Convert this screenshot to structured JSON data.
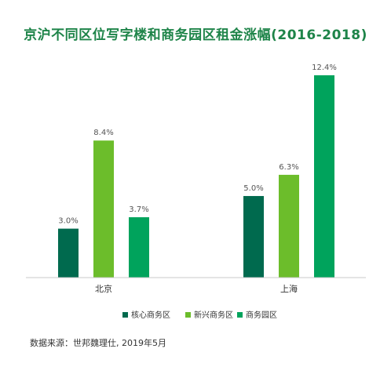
{
  "chart_data": {
    "type": "bar",
    "title": "京沪不同区位写字楼和商务园区租金涨幅(2016-2018)",
    "categories": [
      "北京",
      "上海"
    ],
    "series": [
      {
        "name": "核心商务区",
        "values": [
          3.0,
          5.0
        ],
        "labels": [
          "3.0%",
          "5.0%"
        ],
        "color": "#006a4e"
      },
      {
        "name": "新兴商务区",
        "values": [
          8.4,
          6.3
        ],
        "labels": [
          "8.4%",
          "6.3%"
        ],
        "color": "#6cbd2b"
      },
      {
        "name": "商务园区",
        "values": [
          3.7,
          12.4
        ],
        "labels": [
          "3.7%",
          "12.4%"
        ],
        "color": "#00a35c"
      }
    ],
    "ylim": [
      0,
      12.4
    ],
    "grid": false,
    "legend": "bottom",
    "source": "数据来源：世邦魏理仕, 2019年5月"
  }
}
